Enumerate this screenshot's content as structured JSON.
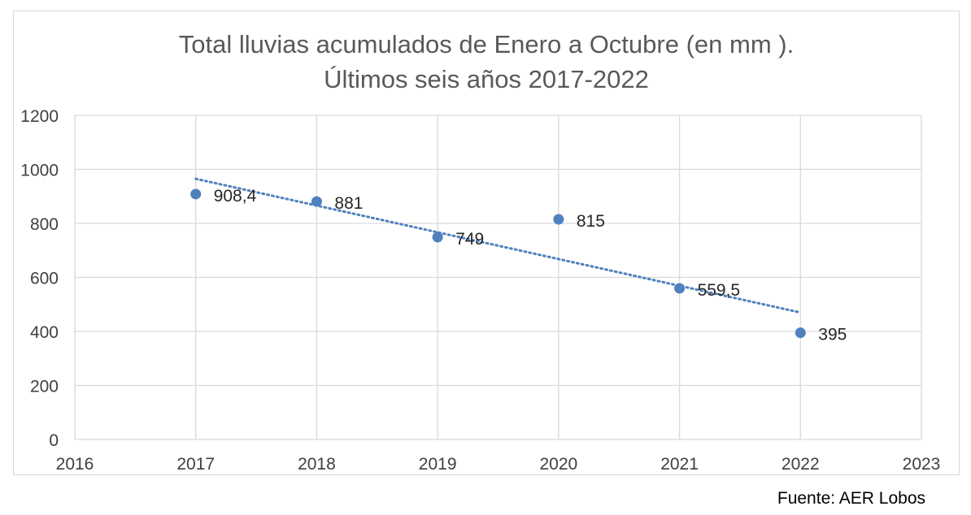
{
  "chart_data": {
    "type": "scatter",
    "title_lines": [
      "Total lluvias acumulados de Enero a Octubre (en mm ).",
      "Últimos seis años 2017-2022"
    ],
    "xlabel": "",
    "ylabel": "",
    "xlim": [
      2016,
      2023
    ],
    "ylim": [
      0,
      1200
    ],
    "x_ticks": [
      2016,
      2017,
      2018,
      2019,
      2020,
      2021,
      2022,
      2023
    ],
    "y_ticks": [
      0,
      200,
      400,
      600,
      800,
      1000,
      1200
    ],
    "grid": true,
    "legend": "none",
    "series": [
      {
        "x": [
          2017,
          2018,
          2019,
          2020,
          2021,
          2022
        ],
        "y": [
          908.4,
          881,
          749,
          815,
          559.5,
          395
        ],
        "labels": [
          "908,4",
          "881",
          "749",
          "815",
          "559,5",
          "395"
        ],
        "color": "#4f81bd"
      }
    ],
    "trendline": {
      "type": "linear",
      "style": "dotted",
      "color": "#4f81bd",
      "x": [
        2017,
        2022
      ],
      "y": [
        965,
        470
      ]
    }
  },
  "footer": {
    "source": "Fuente: AER Lobos"
  }
}
